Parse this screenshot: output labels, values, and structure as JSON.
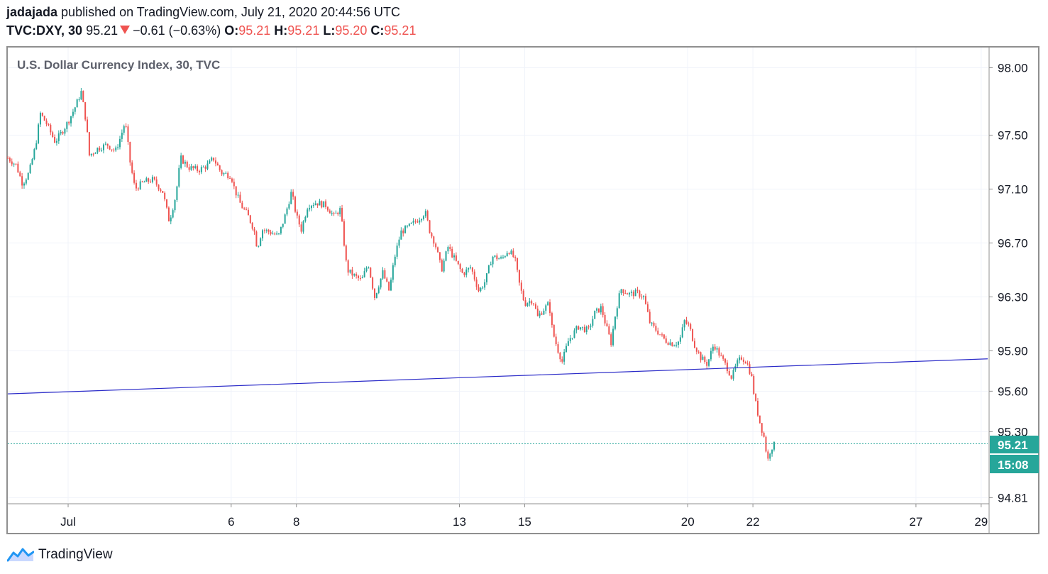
{
  "header": {
    "author": "jadajada",
    "published_text": " published on TradingView.com, July 21, 2020 20:44:56 UTC",
    "symbol": "TVC:DXY, 30",
    "last_price": "95.21",
    "change": "−0.61 (−0.63%)",
    "o_label": "O:",
    "o_value": "95.21",
    "h_label": "H:",
    "h_value": "95.21",
    "l_label": "L:",
    "l_value": "95.20",
    "c_label": "C:",
    "c_value": "95.21"
  },
  "footer": {
    "brand": "TradingView"
  },
  "colors": {
    "up": "#26a69a",
    "down": "#ef5350",
    "trendline": "#2b2bc8",
    "badge": "#26a69a",
    "grid": "#f0f3fa"
  },
  "chart_data": {
    "type": "candlestick",
    "title": "U.S. Dollar Currency Index, 30, TVC",
    "interval": "30 minutes",
    "y_ticks": [
      "98.00",
      "97.50",
      "97.10",
      "96.70",
      "96.30",
      "95.90",
      "95.60",
      "95.30",
      "94.81"
    ],
    "y_tick_values": [
      98.0,
      97.5,
      97.1,
      96.7,
      96.3,
      95.9,
      95.6,
      95.3,
      94.81
    ],
    "x_ticks": [
      "Jul",
      "6",
      "8",
      "13",
      "15",
      "20",
      "22",
      "27",
      "29"
    ],
    "x_tick_days": [
      1,
      6,
      8,
      13,
      15,
      20,
      22,
      27,
      29
    ],
    "x_range_days": [
      -0.85,
      29.2
    ],
    "y_range": [
      94.77,
      98.15
    ],
    "last_price_label": "95.21",
    "countdown_label": "15:08",
    "trendline": {
      "start": {
        "day": -0.85,
        "price": 95.58
      },
      "end": {
        "day": 29.2,
        "price": 95.84
      }
    },
    "price_path": [
      {
        "day": -0.85,
        "price": 97.33
      },
      {
        "day": -0.6,
        "price": 97.28
      },
      {
        "day": -0.4,
        "price": 97.14
      },
      {
        "day": -0.2,
        "price": 97.22
      },
      {
        "day": 0.0,
        "price": 97.42
      },
      {
        "day": 0.15,
        "price": 97.66
      },
      {
        "day": 0.35,
        "price": 97.58
      },
      {
        "day": 0.6,
        "price": 97.45
      },
      {
        "day": 0.8,
        "price": 97.52
      },
      {
        "day": 1.0,
        "price": 97.6
      },
      {
        "day": 1.2,
        "price": 97.7
      },
      {
        "day": 1.4,
        "price": 97.82
      },
      {
        "day": 1.55,
        "price": 97.6
      },
      {
        "day": 1.65,
        "price": 97.35
      },
      {
        "day": 1.9,
        "price": 97.4
      },
      {
        "day": 2.2,
        "price": 97.43
      },
      {
        "day": 2.45,
        "price": 97.38
      },
      {
        "day": 2.6,
        "price": 97.48
      },
      {
        "day": 2.75,
        "price": 97.6
      },
      {
        "day": 2.9,
        "price": 97.3
      },
      {
        "day": 3.05,
        "price": 97.1
      },
      {
        "day": 3.3,
        "price": 97.15
      },
      {
        "day": 3.6,
        "price": 97.17
      },
      {
        "day": 3.9,
        "price": 97.08
      },
      {
        "day": 4.1,
        "price": 96.86
      },
      {
        "day": 4.3,
        "price": 97.05
      },
      {
        "day": 4.45,
        "price": 97.33
      },
      {
        "day": 4.7,
        "price": 97.26
      },
      {
        "day": 5.0,
        "price": 97.24
      },
      {
        "day": 5.3,
        "price": 97.28
      },
      {
        "day": 5.45,
        "price": 97.33
      },
      {
        "day": 5.7,
        "price": 97.22
      },
      {
        "day": 6.0,
        "price": 97.2
      },
      {
        "day": 6.1,
        "price": 97.1
      },
      {
        "day": 6.3,
        "price": 96.98
      },
      {
        "day": 6.5,
        "price": 96.91
      },
      {
        "day": 6.7,
        "price": 96.8
      },
      {
        "day": 6.8,
        "price": 96.66
      },
      {
        "day": 6.95,
        "price": 96.8
      },
      {
        "day": 7.2,
        "price": 96.78
      },
      {
        "day": 7.45,
        "price": 96.75
      },
      {
        "day": 7.65,
        "price": 96.9
      },
      {
        "day": 7.85,
        "price": 97.08
      },
      {
        "day": 8.0,
        "price": 96.9
      },
      {
        "day": 8.15,
        "price": 96.8
      },
      {
        "day": 8.35,
        "price": 96.98
      },
      {
        "day": 8.6,
        "price": 97.0
      },
      {
        "day": 8.9,
        "price": 96.98
      },
      {
        "day": 9.15,
        "price": 96.9
      },
      {
        "day": 9.35,
        "price": 96.95
      },
      {
        "day": 9.55,
        "price": 96.5
      },
      {
        "day": 9.75,
        "price": 96.46
      },
      {
        "day": 10.0,
        "price": 96.42
      },
      {
        "day": 10.2,
        "price": 96.55
      },
      {
        "day": 10.4,
        "price": 96.3
      },
      {
        "day": 10.65,
        "price": 96.48
      },
      {
        "day": 10.85,
        "price": 96.34
      },
      {
        "day": 11.0,
        "price": 96.58
      },
      {
        "day": 11.2,
        "price": 96.78
      },
      {
        "day": 11.45,
        "price": 96.82
      },
      {
        "day": 11.75,
        "price": 96.88
      },
      {
        "day": 11.95,
        "price": 96.93
      },
      {
        "day": 12.1,
        "price": 96.78
      },
      {
        "day": 12.25,
        "price": 96.7
      },
      {
        "day": 12.45,
        "price": 96.5
      },
      {
        "day": 12.65,
        "price": 96.67
      },
      {
        "day": 12.85,
        "price": 96.58
      },
      {
        "day": 13.1,
        "price": 96.47
      },
      {
        "day": 13.35,
        "price": 96.52
      },
      {
        "day": 13.6,
        "price": 96.34
      },
      {
        "day": 13.8,
        "price": 96.42
      },
      {
        "day": 14.0,
        "price": 96.6
      },
      {
        "day": 14.3,
        "price": 96.58
      },
      {
        "day": 14.5,
        "price": 96.65
      },
      {
        "day": 14.7,
        "price": 96.58
      },
      {
        "day": 14.85,
        "price": 96.38
      },
      {
        "day": 15.0,
        "price": 96.25
      },
      {
        "day": 15.25,
        "price": 96.28
      },
      {
        "day": 15.4,
        "price": 96.15
      },
      {
        "day": 15.55,
        "price": 96.2
      },
      {
        "day": 15.75,
        "price": 96.25
      },
      {
        "day": 15.85,
        "price": 96.05
      },
      {
        "day": 16.0,
        "price": 95.92
      },
      {
        "day": 16.15,
        "price": 95.82
      },
      {
        "day": 16.35,
        "price": 95.98
      },
      {
        "day": 16.65,
        "price": 96.08
      },
      {
        "day": 16.95,
        "price": 96.05
      },
      {
        "day": 17.15,
        "price": 96.18
      },
      {
        "day": 17.35,
        "price": 96.22
      },
      {
        "day": 17.5,
        "price": 96.08
      },
      {
        "day": 17.65,
        "price": 95.96
      },
      {
        "day": 17.8,
        "price": 96.2
      },
      {
        "day": 17.95,
        "price": 96.36
      },
      {
        "day": 18.2,
        "price": 96.32
      },
      {
        "day": 18.45,
        "price": 96.33
      },
      {
        "day": 18.65,
        "price": 96.3
      },
      {
        "day": 18.85,
        "price": 96.1
      },
      {
        "day": 19.05,
        "price": 96.05
      },
      {
        "day": 19.3,
        "price": 95.98
      },
      {
        "day": 19.55,
        "price": 95.95
      },
      {
        "day": 19.75,
        "price": 95.97
      },
      {
        "day": 19.9,
        "price": 96.12
      },
      {
        "day": 20.05,
        "price": 96.08
      },
      {
        "day": 20.2,
        "price": 95.95
      },
      {
        "day": 20.4,
        "price": 95.85
      },
      {
        "day": 20.6,
        "price": 95.8
      },
      {
        "day": 20.8,
        "price": 95.95
      },
      {
        "day": 21.0,
        "price": 95.86
      },
      {
        "day": 21.2,
        "price": 95.78
      },
      {
        "day": 21.35,
        "price": 95.7
      },
      {
        "day": 21.5,
        "price": 95.8
      },
      {
        "day": 21.65,
        "price": 95.85
      },
      {
        "day": 21.8,
        "price": 95.82
      },
      {
        "day": 21.95,
        "price": 95.72
      },
      {
        "day": 22.05,
        "price": 95.55
      },
      {
        "day": 22.2,
        "price": 95.38
      },
      {
        "day": 22.35,
        "price": 95.25
      },
      {
        "day": 22.45,
        "price": 95.08
      },
      {
        "day": 22.55,
        "price": 95.18
      },
      {
        "day": 22.7,
        "price": 95.21
      }
    ]
  }
}
